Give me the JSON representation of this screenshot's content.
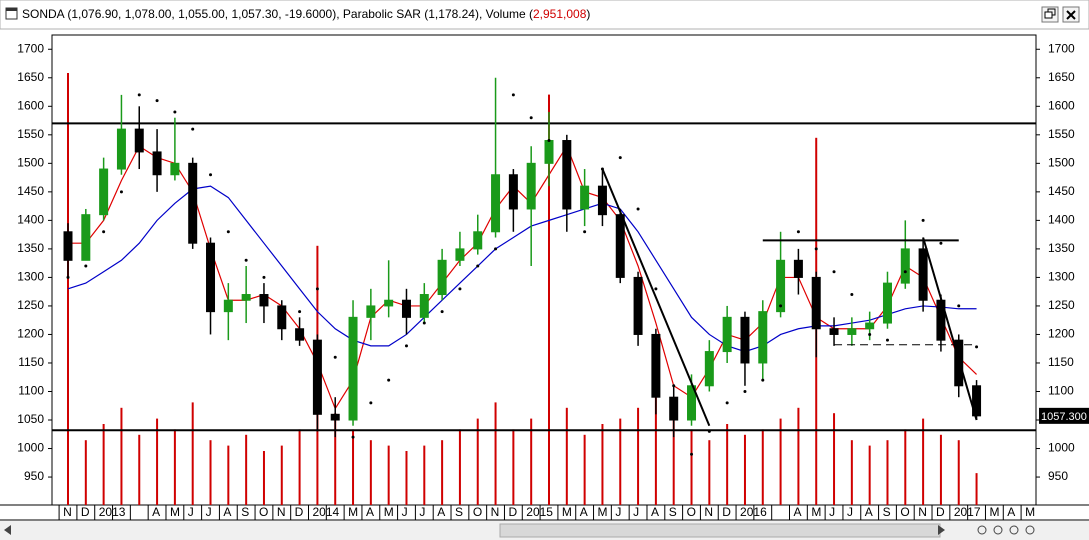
{
  "window": {
    "title_parts": [
      "SONDA (1,076.90, 1,078.00, 1,055.00, 1,057.30, -19.6000), Parabolic SAR (1,178.24), Volume (",
      "2,951,008",
      ")"
    ]
  },
  "chart_data": {
    "type": "candlestick",
    "categories": [
      "N",
      "D",
      "2013",
      null,
      null,
      "A",
      "M",
      "J",
      "J",
      "A",
      "S",
      "O",
      "N",
      "D",
      "2014",
      null,
      "M",
      "A",
      "M",
      "J",
      "J",
      "A",
      "S",
      "O",
      "N",
      "D",
      "2015",
      null,
      "M",
      "A",
      "M",
      "J",
      "J",
      "A",
      "S",
      "O",
      "N",
      "D",
      "2016",
      null,
      null,
      "A",
      "M",
      "J",
      "J",
      "A",
      "S",
      "O",
      "N",
      "D",
      "2017",
      null,
      "M",
      "A",
      "M"
    ],
    "open": [
      1380,
      1330,
      1410,
      1490,
      1560,
      1520,
      1480,
      1500,
      1360,
      1240,
      1260,
      1270,
      1250,
      1210,
      1190,
      1060,
      1050,
      1230,
      1250,
      1260,
      1230,
      1270,
      1330,
      1350,
      1380,
      1480,
      1420,
      1500,
      1540,
      1420,
      1460,
      1410,
      1300,
      1200,
      1090,
      1050,
      1110,
      1170,
      1230,
      1150,
      1240,
      1330,
      1300,
      1210,
      1200,
      1210,
      1220,
      1290,
      1350,
      1260,
      1190,
      1110,
      null,
      null,
      null
    ],
    "high": [
      1395,
      1420,
      1510,
      1620,
      1600,
      1560,
      1580,
      1510,
      1370,
      1290,
      1320,
      1290,
      1260,
      1230,
      1200,
      1090,
      1260,
      1280,
      1330,
      1280,
      1290,
      1350,
      1380,
      1410,
      1650,
      1490,
      1530,
      1590,
      1550,
      1490,
      1490,
      1420,
      1310,
      1210,
      1110,
      1130,
      1190,
      1250,
      1240,
      1260,
      1380,
      1350,
      1310,
      1230,
      1230,
      1240,
      1310,
      1400,
      1370,
      1270,
      1200,
      1120,
      null,
      null,
      null
    ],
    "low": [
      1300,
      1330,
      1400,
      1480,
      1490,
      1450,
      1470,
      1350,
      1200,
      1190,
      1220,
      1220,
      1190,
      1180,
      1030,
      1020,
      1040,
      1190,
      1230,
      1200,
      1220,
      1260,
      1320,
      1340,
      1370,
      1380,
      1320,
      1460,
      1380,
      1390,
      1390,
      1290,
      1180,
      1060,
      1020,
      1040,
      1100,
      1150,
      1110,
      1120,
      1230,
      1270,
      1160,
      1180,
      1180,
      1190,
      1210,
      1280,
      1240,
      1170,
      1090,
      1050,
      null,
      null,
      null
    ],
    "close": [
      1330,
      1410,
      1490,
      1560,
      1520,
      1480,
      1500,
      1360,
      1240,
      1260,
      1270,
      1250,
      1210,
      1190,
      1060,
      1050,
      1230,
      1250,
      1260,
      1230,
      1270,
      1330,
      1350,
      1380,
      1480,
      1420,
      1500,
      1540,
      1420,
      1460,
      1410,
      1300,
      1200,
      1090,
      1050,
      1110,
      1170,
      1230,
      1150,
      1240,
      1330,
      1300,
      1210,
      1200,
      1210,
      1220,
      1290,
      1350,
      1260,
      1190,
      1110,
      1057.3,
      null,
      null,
      null
    ],
    "up_color": "#1a9a1a",
    "down_color": "#000000",
    "volume": [
      40000000,
      6000000,
      7500000,
      9000000,
      6500000,
      8000000,
      7000000,
      9500000,
      6000000,
      5500000,
      6500000,
      5000000,
      5500000,
      7000000,
      24000000,
      8500000,
      7000000,
      6000000,
      5500000,
      5000000,
      5500000,
      6000000,
      7000000,
      8000000,
      9500000,
      7000000,
      8000000,
      38000000,
      9000000,
      6500000,
      7500000,
      8000000,
      9000000,
      10000000,
      8500000,
      7000000,
      6000000,
      7500000,
      6500000,
      7000000,
      8000000,
      9000000,
      34000000,
      8500000,
      6000000,
      5500000,
      6000000,
      7000000,
      8000000,
      6500000,
      6000000,
      2951008,
      null,
      null,
      null
    ],
    "volume_color": "#d00000",
    "lines": [
      {
        "color": "#e00000",
        "values": [
          1360,
          1360,
          1400,
          1470,
          1530,
          1510,
          1500,
          1450,
          1350,
          1260,
          1260,
          1270,
          1250,
          1210,
          1150,
          1070,
          1120,
          1230,
          1260,
          1250,
          1250,
          1290,
          1330,
          1360,
          1420,
          1460,
          1430,
          1480,
          1530,
          1450,
          1440,
          1400,
          1320,
          1220,
          1110,
          1090,
          1140,
          1200,
          1190,
          1220,
          1300,
          1300,
          1230,
          1210,
          1210,
          1210,
          1250,
          1320,
          1300,
          1230,
          1160,
          1130,
          null,
          null,
          null
        ]
      },
      {
        "color": "#0000c8",
        "values": [
          1280,
          1290,
          1310,
          1330,
          1360,
          1400,
          1430,
          1455,
          1460,
          1440,
          1400,
          1360,
          1320,
          1280,
          1240,
          1210,
          1190,
          1180,
          1180,
          1200,
          1230,
          1260,
          1290,
          1320,
          1350,
          1370,
          1390,
          1400,
          1410,
          1420,
          1430,
          1420,
          1380,
          1330,
          1280,
          1230,
          1200,
          1180,
          1170,
          1180,
          1200,
          1210,
          1215,
          1215,
          1220,
          1225,
          1235,
          1245,
          1250,
          1248,
          1245,
          1245,
          null,
          null,
          null
        ]
      }
    ],
    "sar": {
      "color": "#000000",
      "values": [
        1300,
        1320,
        1380,
        1450,
        1620,
        1610,
        1590,
        1560,
        1480,
        1380,
        1330,
        1300,
        1230,
        1240,
        1280,
        1160,
        1020,
        1080,
        1120,
        1180,
        1220,
        1240,
        1280,
        1320,
        1350,
        1620,
        1580,
        1540,
        1470,
        1380,
        1490,
        1510,
        1420,
        1280,
        1110,
        990,
        1030,
        1080,
        1100,
        1120,
        1250,
        1380,
        1350,
        1310,
        1270,
        1200,
        1190,
        1310,
        1400,
        1360,
        1250,
        1178.24,
        null,
        null,
        null
      ]
    },
    "hlines": [
      1570,
      1032
    ],
    "trendlines": [
      {
        "x": [
          39,
          50
        ],
        "y": [
          1365,
          1365
        ],
        "dashed": false
      },
      {
        "x": [
          43,
          51
        ],
        "y": [
          1182,
          1182
        ],
        "dashed": true
      },
      {
        "x": [
          30,
          36
        ],
        "y": [
          1490,
          1040
        ],
        "dashed": false
      },
      {
        "x": [
          48,
          51
        ],
        "y": [
          1370,
          1050
        ],
        "dashed": false
      }
    ],
    "ylim": [
      901,
      1725
    ],
    "yticks": [
      950,
      1000,
      1050,
      1100,
      1150,
      1200,
      1250,
      1300,
      1350,
      1400,
      1450,
      1500,
      1550,
      1600,
      1650,
      1700
    ],
    "price_tag": {
      "value": 1057.3,
      "label": "1057.300"
    }
  }
}
